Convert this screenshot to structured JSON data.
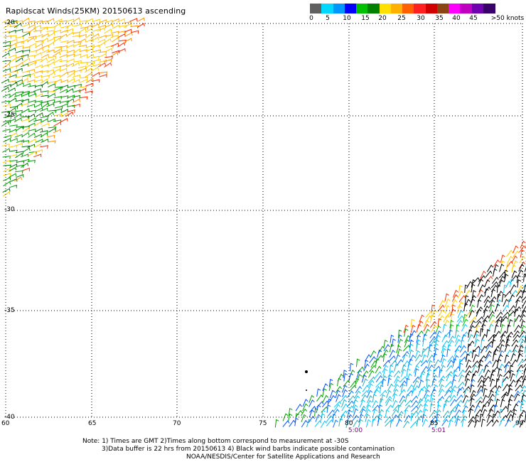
{
  "title": "Rapidscat Winds(25KM) 20150613 ascending",
  "scale": {
    "colors": [
      "#606060",
      "#00d8ff",
      "#0096ff",
      "#0000ff",
      "#00c000",
      "#008000",
      "#ffe000",
      "#ffb000",
      "#ff6000",
      "#ff2020",
      "#d00000",
      "#8b4513",
      "#ff00ff",
      "#c000c0",
      "#7000b0",
      "#3a006a"
    ],
    "labels": [
      "0",
      "5",
      "10",
      "15",
      "20",
      "25",
      "30",
      "35",
      "40",
      "45",
      ">50 knots"
    ]
  },
  "axes": {
    "x_labels": [
      "60",
      "65",
      "70",
      "75",
      "80",
      "85",
      "90"
    ],
    "y_labels": [
      "-20",
      "-25",
      "-30",
      "-35",
      "-40"
    ]
  },
  "times": [
    "5:00",
    "5:01"
  ],
  "notes": [
    "Note: 1) Times are GMT 2)Times along bottom correspond to measurement at -30S",
    "3)Data buffer is 22 hrs from 20150613 4) Black wind barbs indicate possible contamination",
    "NOAA/NESDIS/Center for Satellite Applications and Research"
  ]
}
